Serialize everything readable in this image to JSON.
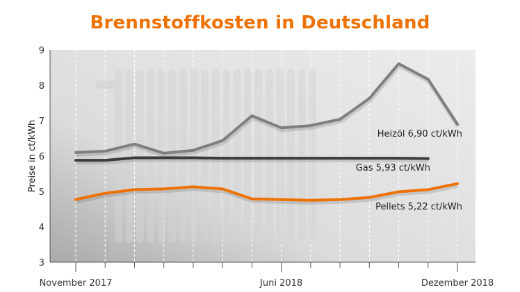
{
  "chart_data": {
    "type": "line",
    "title": "Brennstoffkosten in Deutschland",
    "ylabel": "Preise in ct/kWh",
    "xlabel": "",
    "ylim": [
      3,
      9
    ],
    "yticks": [
      "3",
      "4",
      "5",
      "6",
      "7",
      "8",
      "9"
    ],
    "x": [
      "2017-11",
      "2017-12",
      "2018-01",
      "2018-02",
      "2018-03",
      "2018-04",
      "2018-05",
      "2018-06",
      "2018-07",
      "2018-08",
      "2018-09",
      "2018-10",
      "2018-11",
      "2018-12"
    ],
    "xtick_labels": [
      {
        "index": 0,
        "label": "November 2017"
      },
      {
        "index": 7,
        "label": "Juni 2018"
      },
      {
        "index": 13,
        "label": "Dezember 2018"
      }
    ],
    "grid": "vertical dashed",
    "series": [
      {
        "name": "Heizöl",
        "label": "Heizöl 6,90 ct/kWh",
        "color": "#7f7f7f",
        "values": [
          6.1,
          6.14,
          6.34,
          6.08,
          6.16,
          6.44,
          7.14,
          6.8,
          6.86,
          7.04,
          7.63,
          8.61,
          8.17,
          6.9
        ]
      },
      {
        "name": "Gas",
        "label": "Gas  5,93 ct/kWh",
        "color": "#3c3c3c",
        "values": [
          5.88,
          5.88,
          5.95,
          5.95,
          5.95,
          5.94,
          5.94,
          5.94,
          5.94,
          5.94,
          5.94,
          5.94,
          5.93,
          null
        ]
      },
      {
        "name": "Pellets",
        "label": "Pellets  5,22 ct/kWh",
        "color": "#ee7203",
        "values": [
          4.77,
          4.95,
          5.05,
          5.07,
          5.13,
          5.07,
          4.79,
          4.77,
          4.75,
          4.77,
          4.83,
          4.99,
          5.05,
          5.22
        ]
      }
    ]
  }
}
